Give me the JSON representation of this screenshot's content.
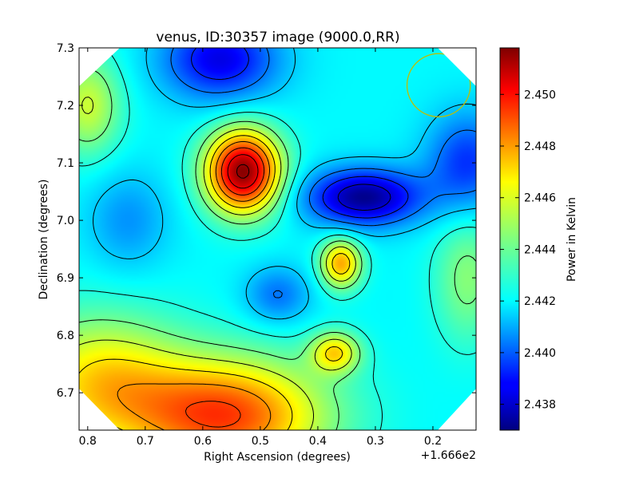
{
  "chart_data": {
    "type": "heatmap",
    "title": "venus, ID:30357 image (9000.0,RR)",
    "xlabel": "Right Ascension (degrees)",
    "ylabel": "Declination (degrees)",
    "x_offset_label": "+1.666e2",
    "x_ticks": [
      0.8,
      0.7,
      0.6,
      0.5,
      0.4,
      0.3,
      0.2
    ],
    "x_tick_labels": [
      "0.8",
      "0.7",
      "0.6",
      "0.5",
      "0.4",
      "0.3",
      "0.2"
    ],
    "xlim": [
      0.815,
      0.125
    ],
    "y_ticks": [
      6.7,
      6.8,
      6.9,
      7.0,
      7.1,
      7.2,
      7.3
    ],
    "y_tick_labels": [
      "6.7",
      "6.8",
      "6.9",
      "7.0",
      "7.1",
      "7.2",
      "7.3"
    ],
    "ylim": [
      6.635,
      7.3
    ],
    "colorbar": {
      "label": "Power in Kelvin",
      "range": [
        2.437,
        2.4518
      ],
      "ticks": [
        2.438,
        2.44,
        2.442,
        2.444,
        2.446,
        2.448,
        2.45
      ],
      "tick_labels": [
        "2.438",
        "2.440",
        "2.442",
        "2.444",
        "2.446",
        "2.448",
        "2.450"
      ],
      "colormap": "jet"
    },
    "base_level": 2.4425,
    "features": [
      {
        "ra": 0.53,
        "dec": 7.085,
        "value": 2.4517,
        "sx": 0.045,
        "sy": 0.05
      },
      {
        "ra": 0.32,
        "dec": 7.04,
        "value": 2.4372,
        "sx": 0.07,
        "sy": 0.035
      },
      {
        "ra": 0.36,
        "dec": 6.925,
        "value": 2.4475,
        "sx": 0.025,
        "sy": 0.03
      },
      {
        "ra": 0.37,
        "dec": 6.77,
        "value": 2.4465,
        "sx": 0.03,
        "sy": 0.025
      },
      {
        "ra": 0.56,
        "dec": 6.66,
        "value": 2.449,
        "sx": 0.12,
        "sy": 0.07
      },
      {
        "ra": 0.78,
        "dec": 6.72,
        "value": 2.4465,
        "sx": 0.1,
        "sy": 0.08
      },
      {
        "ra": 0.57,
        "dec": 7.28,
        "value": 2.4385,
        "sx": 0.07,
        "sy": 0.05
      },
      {
        "ra": 0.14,
        "dec": 7.1,
        "value": 2.4395,
        "sx": 0.05,
        "sy": 0.06
      },
      {
        "ra": 0.47,
        "dec": 6.87,
        "value": 2.4405,
        "sx": 0.04,
        "sy": 0.035
      },
      {
        "ra": 0.73,
        "dec": 7.0,
        "value": 2.441,
        "sx": 0.05,
        "sy": 0.06
      },
      {
        "ra": 0.8,
        "dec": 7.2,
        "value": 2.4455,
        "sx": 0.04,
        "sy": 0.06
      },
      {
        "ra": 0.14,
        "dec": 6.9,
        "value": 2.4445,
        "sx": 0.04,
        "sy": 0.08
      }
    ],
    "beam_circle": {
      "ra": 0.19,
      "dec": 7.235,
      "radius_deg": 0.055,
      "color": "#bfbf00"
    },
    "contour_color": "#000000",
    "contour_step": 0.0012
  }
}
